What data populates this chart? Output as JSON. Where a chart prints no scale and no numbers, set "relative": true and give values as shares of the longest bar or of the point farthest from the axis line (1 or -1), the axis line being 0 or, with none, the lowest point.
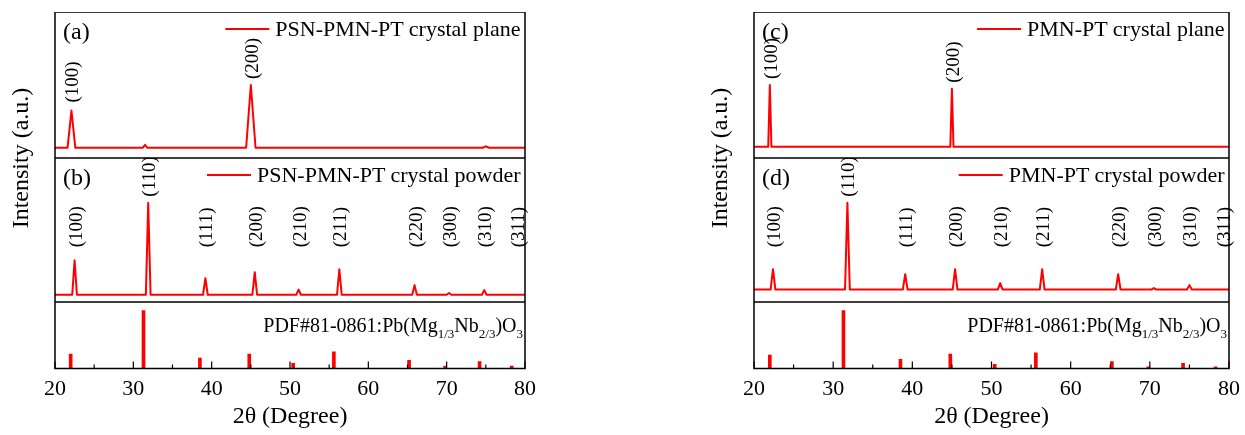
{
  "chart_data": [
    {
      "type": "line",
      "title": "(a)",
      "relative": true,
      "xlim": [
        20,
        80
      ],
      "tick_labels": false,
      "legend": "top right",
      "series": [
        {
          "name": "PSN-PMN-PT crystal plane",
          "color": "#ff0000",
          "x": [
            20,
            21.6,
            22.1,
            22.6,
            31.2,
            31.5,
            31.8,
            44.4,
            45.0,
            45.6,
            74.6,
            75.0,
            75.4,
            80
          ],
          "values": [
            0.14,
            0.14,
            0.65,
            0.14,
            0.14,
            0.18,
            0.14,
            0.14,
            1,
            0.14,
            0.14,
            0.16,
            0.14,
            0.14
          ]
        }
      ],
      "annotations": [
        {
          "text": "(100)",
          "x": 22.1,
          "y": 0.65
        },
        {
          "text": "(200)",
          "x": 45.0,
          "y": 1
        }
      ]
    },
    {
      "type": "line",
      "title": "(b)",
      "relative": true,
      "xlim": [
        20,
        80
      ],
      "tick_labels": false,
      "legend": "top right",
      "ylabel": "Intensity (a.u.)",
      "series": [
        {
          "name": "PSN-PMN-PT crystal powder",
          "color": "#ff0000",
          "x": [
            20,
            22.2,
            22.5,
            22.8,
            31.6,
            31.9,
            32.2,
            38.9,
            39.2,
            39.5,
            45.2,
            45.5,
            45.8,
            50.8,
            51.1,
            51.4,
            56.0,
            56.3,
            56.6,
            65.6,
            65.9,
            66.2,
            70.0,
            70.3,
            70.6,
            74.5,
            74.8,
            75.1,
            80
          ],
          "values": [
            0.073,
            0.073,
            0.42,
            0.073,
            0.073,
            1,
            0.073,
            0.073,
            0.24,
            0.073,
            0.073,
            0.3,
            0.073,
            0.073,
            0.125,
            0.073,
            0.073,
            0.33,
            0.073,
            0.073,
            0.17,
            0.073,
            0.073,
            0.09,
            0.073,
            0.073,
            0.12,
            0.073,
            0.073
          ]
        }
      ],
      "annotations": [
        {
          "text": "(100)",
          "x": 22.5,
          "y": 0.42
        },
        {
          "text": "(110)",
          "x": 31.9,
          "y": 1
        },
        {
          "text": "(111)",
          "x": 39.2,
          "y": 0.24
        },
        {
          "text": "(200)",
          "x": 45.5,
          "y": 0.3
        },
        {
          "text": "(210)",
          "x": 51.1,
          "y": 0.125
        },
        {
          "text": "(211)",
          "x": 56.3,
          "y": 0.33
        },
        {
          "text": "(220)",
          "x": 65.9,
          "y": 0.17
        },
        {
          "text": "(300)",
          "x": 70.3,
          "y": 0.09
        },
        {
          "text": "(310)",
          "x": 74.8,
          "y": 0.12
        },
        {
          "text": "(311)",
          "x": 79.0,
          "y": 0.073
        }
      ]
    },
    {
      "type": "bar",
      "relative": true,
      "xlim": [
        20,
        80
      ],
      "tick_labels": "x",
      "xlabel": "2θ (Degree)",
      "xticks": [
        20,
        {
          "value": 25,
          "label": null
        },
        30,
        {
          "value": 35,
          "label": null
        },
        40,
        {
          "value": 45,
          "label": null
        },
        50,
        {
          "value": 55,
          "label": null
        },
        60,
        {
          "value": 65,
          "label": null
        },
        70,
        {
          "value": 75,
          "label": null
        },
        80
      ],
      "x": [
        22.0,
        31.3,
        38.5,
        44.8,
        50.4,
        55.6,
        65.2,
        69.8,
        74.2,
        78.3
      ],
      "values": [
        0.25,
        1,
        0.18,
        0.25,
        0.09,
        0.29,
        0.14,
        0.04,
        0.12,
        0.04
      ],
      "color": "#ff0000",
      "annotations": [
        "PDF#81-0861:Pb(Mg$_{1/3}$Nb$_{2/3}$)O$_{3}$"
      ]
    },
    {
      "type": "line",
      "title": "(c)",
      "relative": true,
      "xlim": [
        20,
        80
      ],
      "tick_labels": false,
      "legend": "top right",
      "series": [
        {
          "name": "PMN-PT crystal plane",
          "color": "#ff0000",
          "x": [
            20,
            21.8,
            22.0,
            22.2,
            44.8,
            45.0,
            45.2,
            80
          ],
          "values": [
            0.155,
            0.155,
            1,
            0.155,
            0.155,
            0.95,
            0.155,
            0.155
          ]
        }
      ],
      "annotations": [
        {
          "text": "(100)",
          "x": 22.0,
          "y": 1
        },
        {
          "text": "(200)",
          "x": 45.0,
          "y": 0.95
        }
      ]
    },
    {
      "type": "line",
      "title": "(d)",
      "relative": true,
      "xlim": [
        20,
        80
      ],
      "tick_labels": false,
      "legend": "top right",
      "ylabel": "Intensity (a.u.)",
      "series": [
        {
          "name": "PMN-PT crystal powder",
          "color": "#ff0000",
          "x": [
            20,
            22.1,
            22.4,
            22.7,
            31.5,
            31.8,
            32.1,
            38.8,
            39.1,
            39.4,
            45.1,
            45.4,
            45.7,
            50.8,
            51.1,
            51.4,
            56.1,
            56.4,
            56.7,
            65.7,
            66.0,
            66.3,
            70.2,
            70.5,
            70.8,
            74.7,
            75.0,
            75.3,
            80
          ],
          "values": [
            0.125,
            0.125,
            0.33,
            0.125,
            0.125,
            1,
            0.125,
            0.125,
            0.28,
            0.125,
            0.125,
            0.33,
            0.125,
            0.125,
            0.19,
            0.125,
            0.125,
            0.33,
            0.125,
            0.125,
            0.28,
            0.125,
            0.125,
            0.14,
            0.125,
            0.125,
            0.17,
            0.125,
            0.125
          ]
        }
      ],
      "annotations": [
        {
          "text": "(100)",
          "x": 22.4,
          "y": 0.33
        },
        {
          "text": "(110)",
          "x": 31.8,
          "y": 1
        },
        {
          "text": "(111)",
          "x": 39.1,
          "y": 0.28
        },
        {
          "text": "(200)",
          "x": 45.4,
          "y": 0.33
        },
        {
          "text": "(210)",
          "x": 51.1,
          "y": 0.19
        },
        {
          "text": "(211)",
          "x": 56.4,
          "y": 0.33
        },
        {
          "text": "(220)",
          "x": 66.0,
          "y": 0.28
        },
        {
          "text": "(300)",
          "x": 70.5,
          "y": 0.14
        },
        {
          "text": "(310)",
          "x": 75.0,
          "y": 0.17
        },
        {
          "text": "(311)",
          "x": 79.2,
          "y": 0.125
        }
      ]
    },
    {
      "type": "bar",
      "relative": true,
      "xlim": [
        20,
        80
      ],
      "tick_labels": "x",
      "xlabel": "2θ (Degree)",
      "xticks": [
        20,
        {
          "value": 25,
          "label": null
        },
        30,
        {
          "value": 35,
          "label": null
        },
        40,
        {
          "value": 45,
          "label": null
        },
        50,
        {
          "value": 55,
          "label": null
        },
        60,
        {
          "value": 65,
          "label": null
        },
        70,
        {
          "value": 75,
          "label": null
        },
        80
      ],
      "x": [
        22.0,
        31.3,
        38.5,
        44.8,
        50.4,
        55.6,
        65.2,
        69.8,
        74.2,
        78.3
      ],
      "values": [
        0.23,
        1,
        0.16,
        0.25,
        0.07,
        0.27,
        0.12,
        0.03,
        0.09,
        0.03
      ],
      "color": "#ff0000",
      "annotations": [
        "PDF#81-0861:Pb(Mg$_{1/3}$Nb$_{2/3}$)O$_{3}$"
      ]
    }
  ]
}
